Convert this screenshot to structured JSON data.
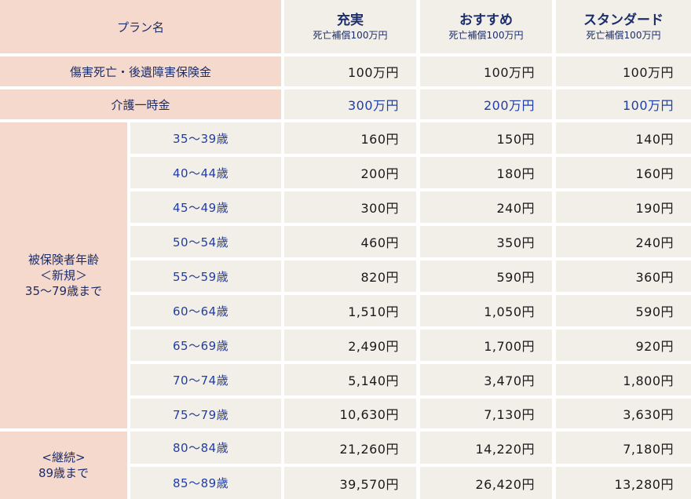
{
  "header": {
    "plan_label": "プラン名",
    "plans": [
      {
        "name": "充実",
        "sub": "死亡補償100万円"
      },
      {
        "name": "おすすめ",
        "sub": "死亡補償100万円"
      },
      {
        "name": "スタンダード",
        "sub": "死亡補償100万円"
      }
    ]
  },
  "death_row": {
    "label": "傷害死亡・後遺障害保険金",
    "values": [
      "100万円",
      "100万円",
      "100万円"
    ]
  },
  "care_row": {
    "label": "介護一時金",
    "values": [
      "300万円",
      "200万円",
      "100万円"
    ]
  },
  "group_new": {
    "line1": "被保険者年齢",
    "line2": "＜新規＞",
    "line3": "35〜79歳まで"
  },
  "group_cont": {
    "line1": "<継続>",
    "line2": "89歳まで"
  },
  "rows": [
    {
      "age": "35〜39歳",
      "values": [
        "160円",
        "150円",
        "140円"
      ]
    },
    {
      "age": "40〜44歳",
      "values": [
        "200円",
        "180円",
        "160円"
      ]
    },
    {
      "age": "45〜49歳",
      "values": [
        "300円",
        "240円",
        "190円"
      ]
    },
    {
      "age": "50〜54歳",
      "values": [
        "460円",
        "350円",
        "240円"
      ]
    },
    {
      "age": "55〜59歳",
      "values": [
        "820円",
        "590円",
        "360円"
      ]
    },
    {
      "age": "60〜64歳",
      "values": [
        "1,510円",
        "1,050円",
        "590円"
      ]
    },
    {
      "age": "65〜69歳",
      "values": [
        "2,490円",
        "1,700円",
        "920円"
      ]
    },
    {
      "age": "70〜74歳",
      "values": [
        "5,140円",
        "3,470円",
        "1,800円"
      ]
    },
    {
      "age": "75〜79歳",
      "values": [
        "10,630円",
        "7,130円",
        "3,630円"
      ]
    },
    {
      "age": "80〜84歳",
      "values": [
        "21,260円",
        "14,220円",
        "7,180円"
      ]
    },
    {
      "age": "85〜89歳",
      "values": [
        "39,570円",
        "26,420円",
        "13,280円"
      ]
    }
  ]
}
